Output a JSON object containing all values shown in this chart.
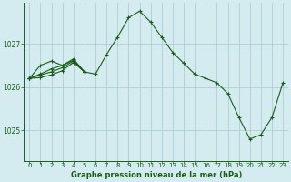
{
  "title": "Graphe pression niveau de la mer (hPa)",
  "bg_color": "#d4ecf0",
  "grid_color": "#aecdd5",
  "line_color": "#1a5c1a",
  "xlim": [
    -0.5,
    23.5
  ],
  "ylim": [
    1024.3,
    1027.95
  ],
  "yticks": [
    1025,
    1026,
    1027
  ],
  "xticks": [
    0,
    1,
    2,
    3,
    4,
    5,
    6,
    7,
    8,
    9,
    10,
    11,
    12,
    13,
    14,
    15,
    16,
    17,
    18,
    19,
    20,
    21,
    22,
    23
  ],
  "series": [
    {
      "x": [
        0,
        1,
        2,
        3,
        4,
        5,
        6,
        7,
        8,
        9,
        10,
        11,
        12,
        13,
        14,
        15,
        16,
        17,
        18,
        19,
        20,
        21,
        22,
        23
      ],
      "y": [
        1026.2,
        1026.5,
        1026.6,
        1026.5,
        1026.65,
        1026.35,
        1026.3,
        1026.75,
        1027.15,
        1027.6,
        1027.75,
        1027.5,
        1027.15,
        1026.8,
        1026.55,
        1026.3,
        1026.2,
        1026.1,
        1025.85,
        1025.3,
        1024.8,
        1024.9,
        1025.3,
        1026.1
      ]
    },
    {
      "x": [
        0,
        1,
        2,
        3,
        4,
        5
      ],
      "y": [
        1026.2,
        1026.3,
        1026.42,
        1026.5,
        1026.62,
        1026.35
      ]
    },
    {
      "x": [
        0,
        1,
        2,
        3,
        4,
        5
      ],
      "y": [
        1026.2,
        1026.28,
        1026.35,
        1026.45,
        1026.6,
        1026.35
      ]
    },
    {
      "x": [
        0,
        1,
        2,
        3,
        4,
        5
      ],
      "y": [
        1026.2,
        1026.22,
        1026.28,
        1026.38,
        1026.57,
        1026.35
      ]
    }
  ]
}
